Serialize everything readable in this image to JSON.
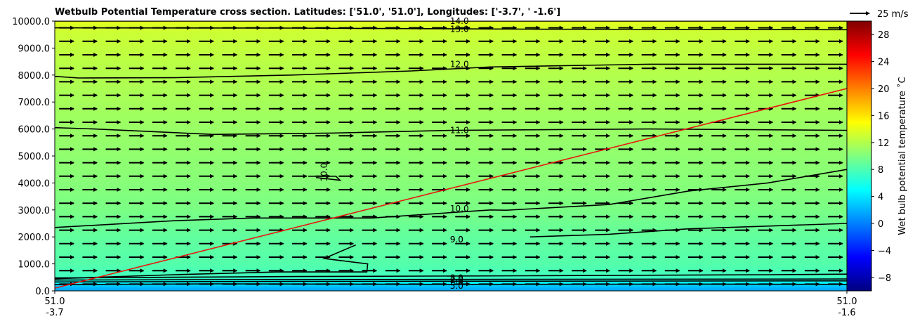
{
  "chart_data": {
    "type": "heatmap",
    "title": "Wetbulb Potential Temperature cross section. Latitudes: ['51.0', '51.0'], Longitudes: ['-3.7', ' -1.6']",
    "x_ticks": [
      {
        "lat": "51.0",
        "lon": "-3.7",
        "pos": 0
      },
      {
        "lat": "51.0",
        "lon": "-1.6",
        "pos": 1
      }
    ],
    "y_range": [
      0,
      10000
    ],
    "y_ticks": [
      "0.0",
      "1000.0",
      "2000.0",
      "3000.0",
      "4000.0",
      "5000.0",
      "6000.0",
      "7000.0",
      "8000.0",
      "9000.0",
      "10000.0"
    ],
    "colorbar": {
      "label": "Wet bulb potential temperature ˚C",
      "range": [
        -10,
        30
      ],
      "ticks": [
        "−8",
        "−4",
        "0",
        "4",
        "8",
        "12",
        "16",
        "20",
        "24",
        "28"
      ]
    },
    "field_profile": [
      {
        "h": 0,
        "t": 1.5
      },
      {
        "h": 150,
        "t": 2.5
      },
      {
        "h": 300,
        "t": 5.0
      },
      {
        "h": 500,
        "t": 7.5
      },
      {
        "h": 1000,
        "t": 8.3
      },
      {
        "h": 2000,
        "t": 8.8
      },
      {
        "h": 3000,
        "t": 9.8
      },
      {
        "h": 4000,
        "t": 10.3
      },
      {
        "h": 6000,
        "t": 11.0
      },
      {
        "h": 8000,
        "t": 12.0
      },
      {
        "h": 9600,
        "t": 13.0
      },
      {
        "h": 10000,
        "t": 14.0
      }
    ],
    "contours": [
      {
        "value": "14.0",
        "points": [
          [
            0,
            10000
          ],
          [
            1,
            10000
          ]
        ],
        "label_at": [
          0.499,
          10000
        ]
      },
      {
        "value": "13.0",
        "points": [
          [
            0,
            9750
          ],
          [
            0.3,
            9740
          ],
          [
            0.6,
            9700
          ],
          [
            1,
            9680
          ]
        ],
        "label_at": [
          0.499,
          9700
        ]
      },
      {
        "value": "12.0",
        "points": [
          [
            0,
            7950
          ],
          [
            0.03,
            7890
          ],
          [
            0.15,
            7900
          ],
          [
            0.3,
            8000
          ],
          [
            0.45,
            8150
          ],
          [
            0.55,
            8300
          ],
          [
            0.75,
            8400
          ],
          [
            1,
            8400
          ]
        ],
        "label_at": [
          0.499,
          8400
        ]
      },
      {
        "value": "11.0",
        "points": [
          [
            0,
            6050
          ],
          [
            0.05,
            6000
          ],
          [
            0.2,
            5800
          ],
          [
            0.35,
            5850
          ],
          [
            0.5,
            5950
          ],
          [
            0.75,
            6000
          ],
          [
            1,
            5950
          ]
        ],
        "label_at": [
          0.499,
          5950
        ]
      },
      {
        "value": "10.0",
        "points": [
          [
            0,
            2350
          ],
          [
            0.15,
            2600
          ],
          [
            0.25,
            2700
          ],
          [
            0.4,
            2700
          ],
          [
            0.55,
            3000
          ],
          [
            0.57,
            2990
          ],
          [
            0.7,
            3200
          ],
          [
            0.8,
            3700
          ],
          [
            0.9,
            4000
          ],
          [
            1,
            4500
          ]
        ],
        "label_at": [
          0.499,
          3050
        ]
      },
      {
        "value": "9.0",
        "points": [
          [
            0.38,
            1700
          ],
          [
            0.34,
            1200
          ],
          [
            0.395,
            1000
          ],
          [
            0.394,
            700
          ],
          [
            0.28,
            700
          ],
          [
            0.15,
            600
          ],
          [
            0.05,
            500
          ],
          [
            0,
            450
          ]
        ],
        "label_at": [
          0.499,
          1900
        ]
      },
      {
        "value": "9.0",
        "points": [
          [
            0.6,
            2000
          ],
          [
            0.7,
            2100
          ],
          [
            0.8,
            2300
          ],
          [
            0.9,
            2400
          ],
          [
            1,
            2500
          ]
        ],
        "label_at": [
          0.499,
          1900
        ]
      },
      {
        "value": "8.0",
        "points": [
          [
            0,
            480
          ],
          [
            0.3,
            530
          ],
          [
            0.6,
            560
          ],
          [
            0.9,
            600
          ],
          [
            1,
            620
          ]
        ],
        "label_at": [
          0.499,
          480
        ]
      },
      {
        "value": "7.0",
        "points": [
          [
            0,
            400
          ],
          [
            0.3,
            420
          ],
          [
            0.6,
            430
          ],
          [
            1,
            440
          ]
        ],
        "label_at": [
          0.499,
          400
        ]
      },
      {
        "value": "6.0",
        "points": [
          [
            0,
            330
          ],
          [
            0.3,
            350
          ],
          [
            0.6,
            360
          ],
          [
            1,
            370
          ]
        ],
        "label_at": [
          0.499,
          320
        ]
      },
      {
        "value": "5.0",
        "points": [
          [
            0,
            230
          ],
          [
            0.2,
            260
          ],
          [
            0.5,
            240
          ],
          [
            0.8,
            250
          ],
          [
            1,
            240
          ]
        ],
        "label_at": [
          0.499,
          180
        ]
      },
      {
        "value": "10.0",
        "points": [
          [
            0.32,
            4250
          ],
          [
            0.355,
            4250
          ],
          [
            0.36,
            4100
          ],
          [
            0.33,
            4200
          ]
        ],
        "label_at": [
          0.34,
          4050
        ],
        "rotate": -90
      }
    ],
    "wind_vectors": {
      "u": 5,
      "v": 0,
      "rows": 20,
      "cols": 34
    },
    "reference_vector": {
      "label": "25 m/s"
    },
    "red_line": {
      "points": [
        [
          0,
          100
        ],
        [
          1,
          7500
        ]
      ],
      "color": "#e8170c"
    }
  }
}
